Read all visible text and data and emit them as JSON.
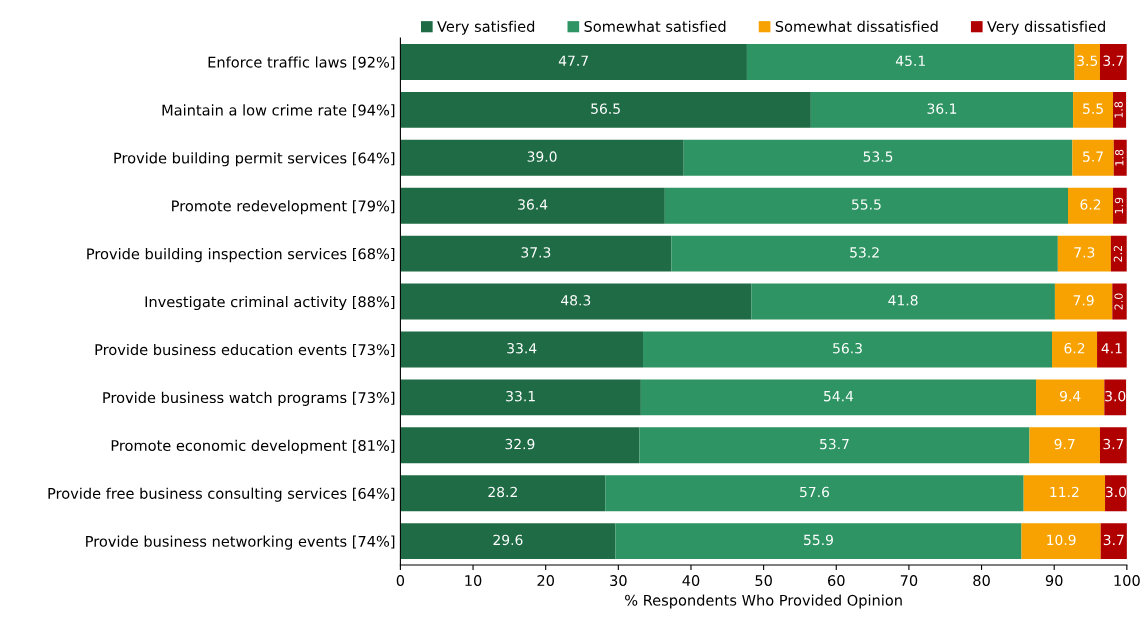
{
  "chart_data": {
    "type": "bar",
    "orientation": "horizontal",
    "stacked": true,
    "data_labels": true,
    "grid": false,
    "legend": "top",
    "xlabel": "% Respondents Who Provided Opinion",
    "categories": [
      "Enforce traffic laws [92%]",
      "Maintain a low crime rate [94%]",
      "Provide building permit services [64%]",
      "Promote redevelopment [79%]",
      "Provide building inspection services [68%]",
      "Investigate criminal activity [88%]",
      "Provide business education events [73%]",
      "Provide business watch programs [73%]",
      "Promote economic development [81%]",
      "Provide free business consulting services [64%]",
      "Provide business networking events [74%]"
    ],
    "xlim": [
      0,
      100
    ],
    "xticks": [
      0,
      10,
      20,
      30,
      40,
      50,
      60,
      70,
      80,
      90,
      100
    ],
    "series": [
      {
        "name": "Very satisfied",
        "color": "#1f6b45",
        "values": [
          47.7,
          56.5,
          39.0,
          36.4,
          37.3,
          48.3,
          33.4,
          33.1,
          32.9,
          28.2,
          29.6
        ],
        "value_labels": [
          "47.7",
          "56.5",
          "39.0",
          "36.4",
          "37.3",
          "48.3",
          "33.4",
          "33.1",
          "32.9",
          "28.2",
          "29.6"
        ]
      },
      {
        "name": "Somewhat satisfied",
        "color": "#2f9463",
        "values": [
          45.1,
          36.1,
          53.5,
          55.5,
          53.2,
          41.8,
          56.3,
          54.4,
          53.7,
          57.6,
          55.9
        ],
        "value_labels": [
          "45.1",
          "36.1",
          "53.5",
          "55.5",
          "53.2",
          "41.8",
          "56.3",
          "54.4",
          "53.7",
          "57.6",
          "55.9"
        ]
      },
      {
        "name": "Somewhat dissatisfied",
        "color": "#f7a200",
        "values": [
          3.5,
          5.5,
          5.7,
          6.2,
          7.3,
          7.9,
          6.2,
          9.4,
          9.7,
          11.2,
          10.9
        ],
        "value_labels": [
          "3.5",
          "5.5",
          "5.7",
          "6.2",
          "7.3",
          "7.9",
          "6.2",
          "9.4",
          "9.7",
          "11.2",
          "10.9"
        ]
      },
      {
        "name": "Very dissatisfied",
        "color": "#b00000",
        "values": [
          3.7,
          1.8,
          1.8,
          1.9,
          2.2,
          2.0,
          4.1,
          3.0,
          3.7,
          3.0,
          3.7
        ],
        "value_labels": [
          "3.7",
          "1.8",
          "1.8",
          "1.9",
          "2.2",
          "2.0",
          "4.1",
          "3.0",
          "3.7",
          "3.0",
          "3.7"
        ]
      }
    ]
  }
}
